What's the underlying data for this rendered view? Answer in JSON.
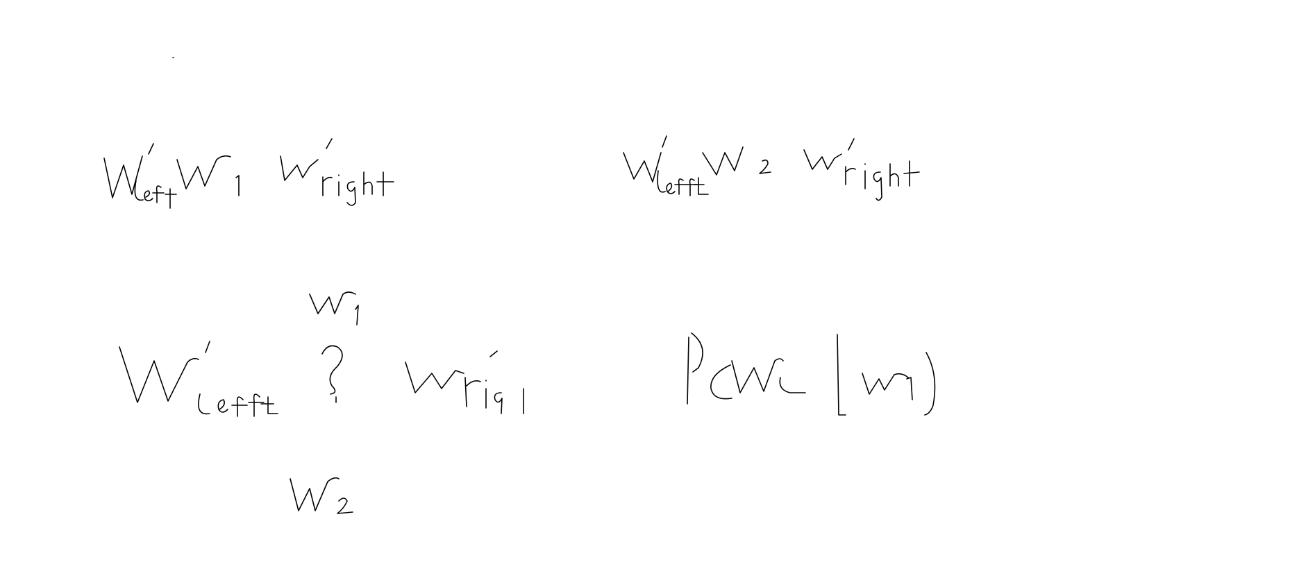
{
  "canvas": {
    "background": "#ffffff",
    "ink_color": "#000000"
  },
  "handwriting": {
    "expr_top_left": "W'left W1 W'right",
    "expr_top_right": "W'left W2 W'right",
    "expr_center_above": "W1",
    "expr_center": "W'left ? W'right",
    "expr_center_below": "W2",
    "expr_probability": "P(W2 | W1)"
  }
}
